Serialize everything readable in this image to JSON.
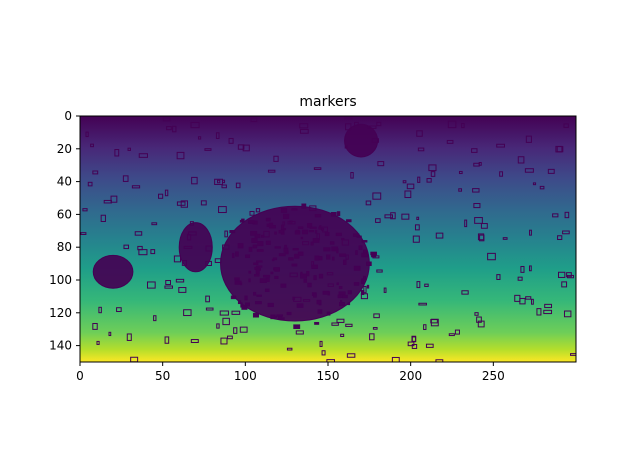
{
  "chart_data": {
    "type": "heatmap",
    "title": "markers",
    "xlabel": "",
    "ylabel": "",
    "image_size": {
      "width": 300,
      "height": 150
    },
    "xlim": [
      0,
      300
    ],
    "ylim": [
      150,
      0
    ],
    "x_ticks": [
      0,
      50,
      100,
      150,
      200,
      250
    ],
    "y_ticks": [
      0,
      20,
      40,
      60,
      80,
      100,
      120,
      140
    ],
    "colormap": "viridis",
    "colors": {
      "low": "#440154",
      "high": "#fde725",
      "marker": "#440154"
    },
    "background_gradient": "vertical, value increases with row (dark purple at row 0 to yellow at row 150)",
    "grid": false,
    "legend": "none",
    "marker_regions": [
      {
        "label": "large cluster",
        "cx": 130,
        "cy": 90,
        "rx": 45,
        "ry": 35
      },
      {
        "label": "left blob",
        "cx": 20,
        "cy": 95,
        "rx": 12,
        "ry": 10
      },
      {
        "label": "top blob",
        "cx": 170,
        "cy": 15,
        "rx": 10,
        "ry": 10
      },
      {
        "label": "mid-left blob",
        "cx": 70,
        "cy": 80,
        "rx": 10,
        "ry": 15
      }
    ]
  }
}
